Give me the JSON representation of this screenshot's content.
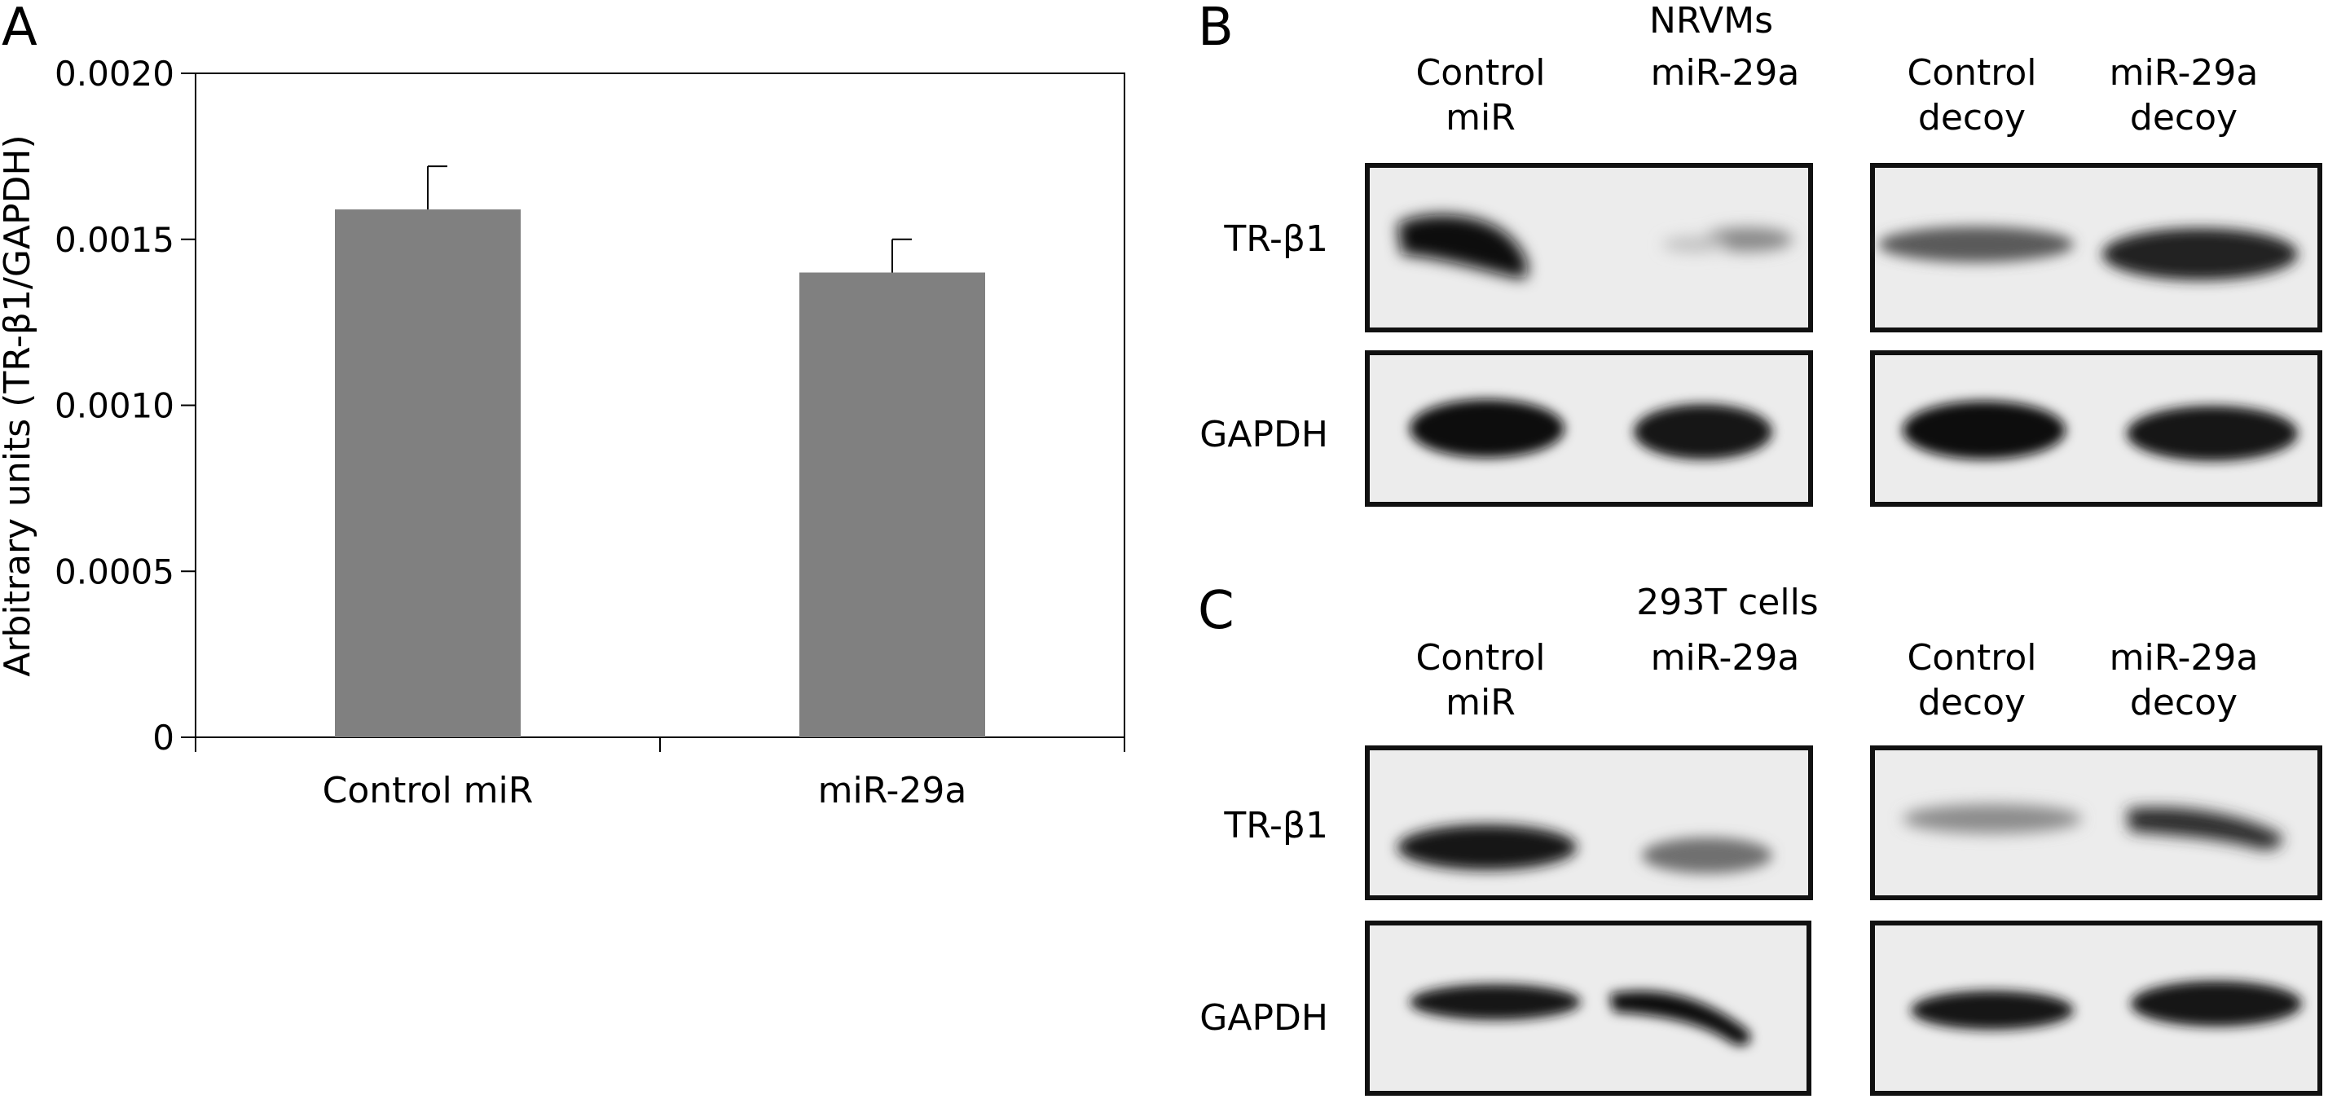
{
  "panels": {
    "a": {
      "letter": "A"
    },
    "b": {
      "letter": "B",
      "title": "NRVMs",
      "lanes": [
        {
          "line1": "Control",
          "line2": "miR"
        },
        {
          "line1": "miR-29a",
          "line2": ""
        },
        {
          "line1": "Control",
          "line2": "decoy"
        },
        {
          "line1": "miR-29a",
          "line2": "decoy"
        }
      ],
      "rows": [
        "TR-β1",
        "GAPDH"
      ]
    },
    "c": {
      "letter": "C",
      "title": "293T cells",
      "lanes": [
        {
          "line1": "Control",
          "line2": "miR"
        },
        {
          "line1": "miR-29a",
          "line2": ""
        },
        {
          "line1": "Control",
          "line2": "decoy"
        },
        {
          "line1": "miR-29a",
          "line2": "decoy"
        }
      ],
      "rows": [
        "TR-β1",
        "GAPDH"
      ]
    }
  },
  "chart_data": {
    "type": "bar",
    "categories": [
      "Control miR",
      "miR-29a"
    ],
    "values": [
      0.00159,
      0.0014
    ],
    "errors": [
      0.00013,
      0.0001
    ],
    "ylabel": "Arbitrary units (TR-β1/GAPDH)",
    "xlabel": "",
    "ylim": [
      0,
      0.002
    ],
    "yticks": [
      "0",
      "0.0005",
      "0.0010",
      "0.0015",
      "0.0020"
    ],
    "ytick_values": [
      0,
      0.0005,
      0.001,
      0.0015,
      0.002
    ],
    "bar_color": "#808080",
    "grid": false
  }
}
